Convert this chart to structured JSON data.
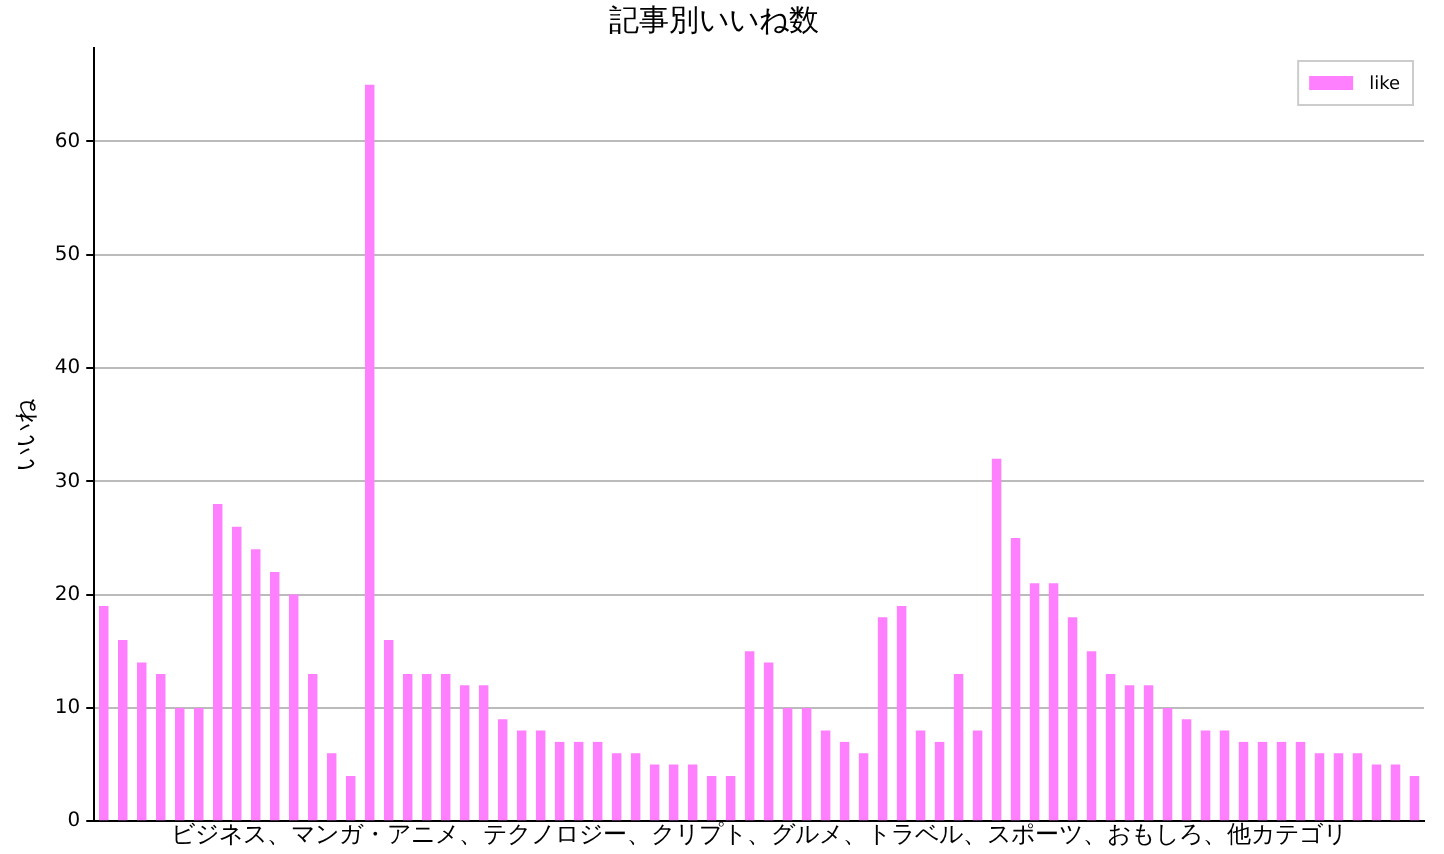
{
  "chart_data": {
    "type": "bar",
    "title": "記事別いいね数",
    "xlabel": "ビジネス、マンガ・アニメ、テクノロジー、クリプト、グルメ、トラベル、スポーツ、おもしろ、他カテゴリ",
    "ylabel": "いいね",
    "categories": [
      null,
      null,
      null,
      null,
      null,
      null,
      null,
      null,
      null,
      null,
      null,
      null,
      null,
      null,
      null,
      null,
      null,
      null,
      null,
      null,
      null,
      null,
      null,
      null,
      null,
      null,
      null,
      null,
      null,
      null,
      null,
      null,
      null,
      null,
      null,
      null,
      null,
      null,
      null,
      null,
      null,
      null,
      null,
      null,
      null,
      null,
      null,
      null,
      null,
      null,
      null,
      null,
      null,
      null,
      null,
      null,
      null,
      null,
      null,
      null,
      null,
      null,
      null,
      null,
      null,
      null,
      null,
      null,
      null,
      null
    ],
    "series": [
      {
        "name": "like",
        "color": "#ff80ff",
        "values": [
          19,
          16,
          14,
          13,
          10,
          10,
          28,
          26,
          24,
          22,
          20,
          13,
          6,
          4,
          65,
          16,
          13,
          13,
          13,
          12,
          12,
          9,
          8,
          8,
          7,
          7,
          7,
          6,
          6,
          5,
          5,
          5,
          4,
          4,
          15,
          14,
          10,
          10,
          8,
          7,
          6,
          18,
          19,
          8,
          7,
          13,
          8,
          32,
          25,
          21,
          21,
          18,
          15,
          13,
          12,
          12,
          10,
          9,
          8,
          8,
          7,
          7,
          7,
          7,
          6,
          6,
          6,
          5,
          5,
          4
        ]
      }
    ],
    "ylim": [
      0,
      68.25
    ],
    "yticks": [
      0,
      10,
      20,
      30,
      40,
      50,
      60
    ],
    "grid": "y",
    "legend": "top right"
  }
}
